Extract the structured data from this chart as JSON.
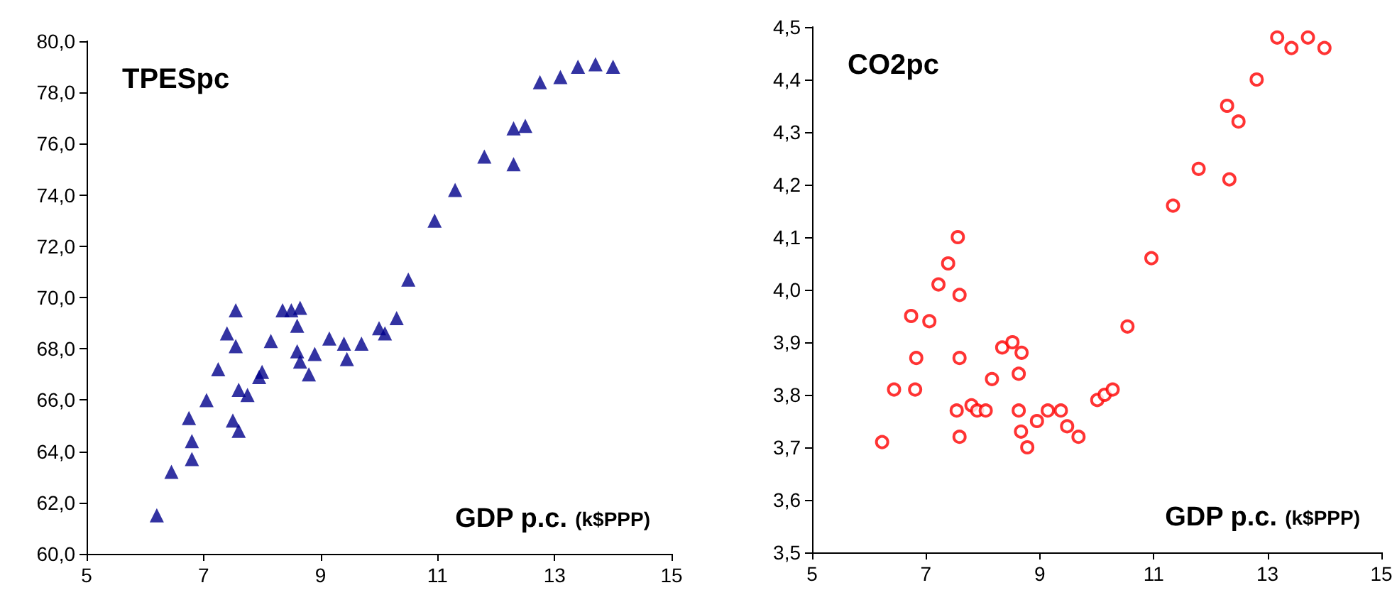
{
  "chart_data": [
    {
      "type": "scatter",
      "title": "TPESpc",
      "xlabel": "GDP p.c. (k$PPP)",
      "color": "#00008b",
      "marker": "triangle",
      "grid": false,
      "xlim": [
        5,
        15
      ],
      "xticks": [
        5,
        7,
        9,
        11,
        13,
        15
      ],
      "ylim": [
        60,
        80
      ],
      "yticks": [
        {
          "value": 60,
          "label": "60,0"
        },
        {
          "value": 62,
          "label": "62,0"
        },
        {
          "value": 64,
          "label": "64,0"
        },
        {
          "value": 66,
          "label": "66,0"
        },
        {
          "value": 68,
          "label": "68,0"
        },
        {
          "value": 70,
          "label": "70,0"
        },
        {
          "value": 72,
          "label": "72,0"
        },
        {
          "value": 74,
          "label": "74,0"
        },
        {
          "value": 76,
          "label": "76,0"
        },
        {
          "value": 78,
          "label": "78,0"
        },
        {
          "value": 80,
          "label": "80,0"
        }
      ],
      "x": [
        6.2,
        6.45,
        6.75,
        6.8,
        6.8,
        7.05,
        7.25,
        7.4,
        7.55,
        7.55,
        7.5,
        7.6,
        7.6,
        7.75,
        7.95,
        8.0,
        8.15,
        8.35,
        8.5,
        8.65,
        8.6,
        8.6,
        8.65,
        8.8,
        8.9,
        9.15,
        9.4,
        9.45,
        9.7,
        10.0,
        10.1,
        10.3,
        10.5,
        10.95,
        11.3,
        11.8,
        12.3,
        12.5,
        12.3,
        12.75,
        13.1,
        13.4,
        13.7,
        14.0
      ],
      "values": [
        61.5,
        63.2,
        65.3,
        64.4,
        63.7,
        66.0,
        67.2,
        68.6,
        69.5,
        68.1,
        65.2,
        64.8,
        66.4,
        66.2,
        66.9,
        67.1,
        68.3,
        69.5,
        69.5,
        69.6,
        68.9,
        67.9,
        67.5,
        67.0,
        67.8,
        68.4,
        68.2,
        67.6,
        68.2,
        68.8,
        68.6,
        69.2,
        70.7,
        73.0,
        74.2,
        75.5,
        76.6,
        76.7,
        75.2,
        78.4,
        78.6,
        79.0,
        79.1,
        79.0
      ]
    },
    {
      "type": "scatter",
      "title": "CO2pc",
      "xlabel": "GDP p.c. (k$PPP)",
      "color": "#ff0000",
      "marker": "circle",
      "grid": false,
      "xlim": [
        5,
        15
      ],
      "xticks": [
        5,
        7,
        9,
        11,
        13,
        15
      ],
      "ylim": [
        3.5,
        4.5
      ],
      "yticks": [
        {
          "value": 3.5,
          "label": "3,5"
        },
        {
          "value": 3.6,
          "label": "3,6"
        },
        {
          "value": 3.7,
          "label": "3,7"
        },
        {
          "value": 3.8,
          "label": "3,8"
        },
        {
          "value": 3.9,
          "label": "3,9"
        },
        {
          "value": 4.0,
          "label": "4,0"
        },
        {
          "value": 4.1,
          "label": "4,1"
        },
        {
          "value": 4.2,
          "label": "4,2"
        },
        {
          "value": 4.3,
          "label": "4,3"
        },
        {
          "value": 4.4,
          "label": "4,4"
        },
        {
          "value": 4.5,
          "label": "4,5"
        }
      ],
      "x": [
        6.23,
        6.44,
        6.81,
        6.83,
        6.74,
        7.06,
        7.22,
        7.59,
        7.59,
        7.54,
        7.59,
        7.8,
        7.9,
        8.05,
        8.16,
        8.34,
        8.52,
        8.68,
        8.63,
        8.63,
        8.67,
        8.78,
        8.95,
        9.14,
        9.37,
        9.48,
        9.68,
        10.01,
        10.14,
        10.28,
        10.54,
        7.39,
        7.56,
        10.96,
        11.34,
        11.79,
        12.33,
        12.29,
        12.49,
        12.81,
        13.17,
        13.42,
        13.71,
        14.0
      ],
      "values": [
        3.71,
        3.81,
        3.81,
        3.87,
        3.95,
        3.94,
        4.01,
        3.99,
        3.87,
        3.77,
        3.72,
        3.78,
        3.77,
        3.77,
        3.83,
        3.89,
        3.9,
        3.88,
        3.84,
        3.77,
        3.73,
        3.7,
        3.75,
        3.77,
        3.77,
        3.74,
        3.72,
        3.79,
        3.8,
        3.81,
        3.93,
        4.05,
        4.1,
        4.06,
        4.16,
        4.23,
        4.21,
        4.35,
        4.32,
        4.4,
        4.48,
        4.46,
        4.48,
        4.46
      ]
    }
  ]
}
